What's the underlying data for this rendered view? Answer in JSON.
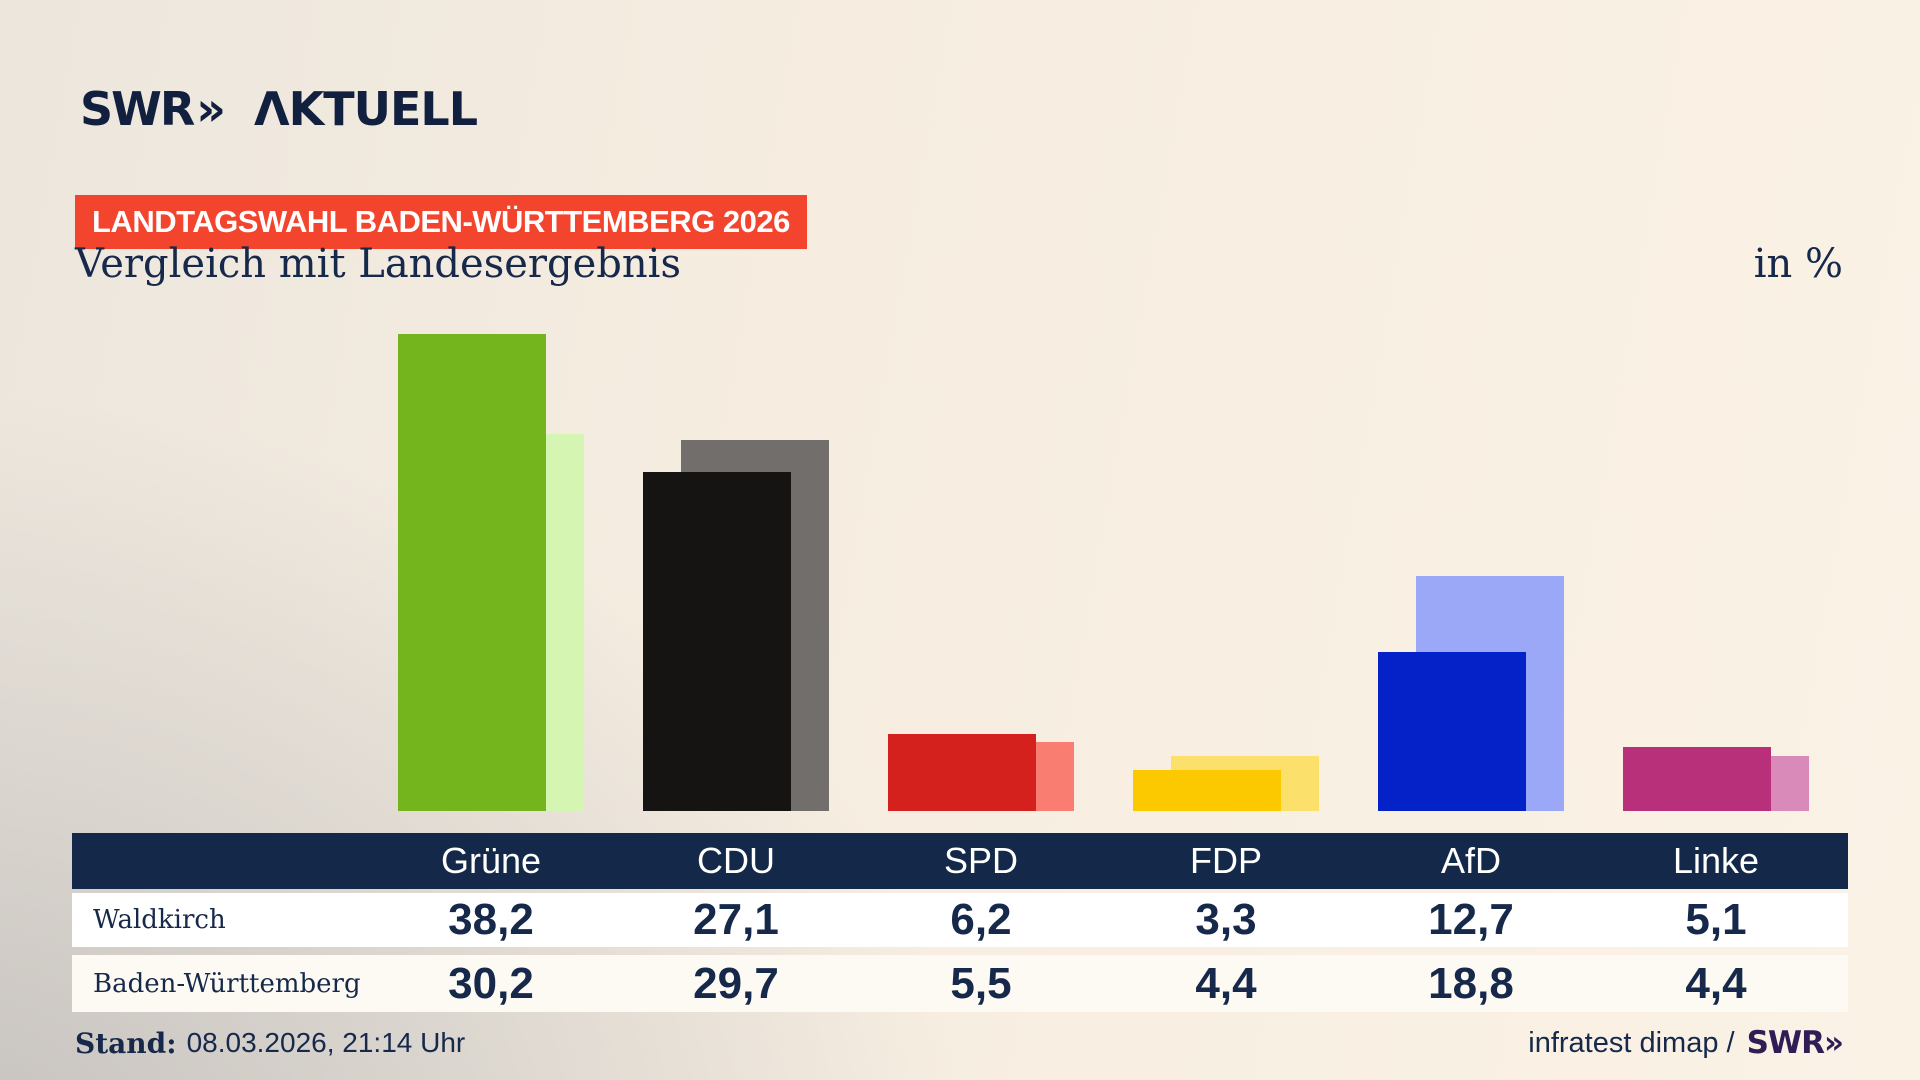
{
  "logo": {
    "swr": "SWR",
    "chevrons": "»",
    "brand": "ΛKTUELL"
  },
  "badge": "LANDTAGSWAHL BADEN-WÜRTTEMBERG 2026",
  "title": "Vergleich mit Landesergebnis",
  "unit_label": "in %",
  "chart_data": {
    "type": "bar",
    "title": "Vergleich mit Landesergebnis",
    "unit": "%",
    "categories": [
      "Grüne",
      "CDU",
      "SPD",
      "FDP",
      "AfD",
      "Linke"
    ],
    "series": [
      {
        "name": "Waldkirch",
        "role": "foreground",
        "values": [
          38.2,
          27.1,
          6.2,
          3.3,
          12.7,
          5.1
        ]
      },
      {
        "name": "Baden-Württemberg",
        "role": "background",
        "values": [
          30.2,
          29.7,
          5.5,
          4.4,
          18.8,
          4.4
        ]
      }
    ],
    "party_colors": [
      {
        "party": "Grüne",
        "main": "#74b51e",
        "light": "#d5f5b2"
      },
      {
        "party": "CDU",
        "main": "#151413",
        "light": "#716e6b"
      },
      {
        "party": "SPD",
        "main": "#d4211d",
        "light": "#fa7d71"
      },
      {
        "party": "FDP",
        "main": "#fcc800",
        "light": "#fbe06c"
      },
      {
        "party": "AfD",
        "main": "#0521c8",
        "light": "#9ba7f7"
      },
      {
        "party": "Linke",
        "main": "#b8307a",
        "light": "#d98ab9"
      }
    ],
    "ylim": [
      0,
      40
    ],
    "value_axis_hidden": true,
    "grid": false,
    "legend": "table below chart"
  },
  "table": {
    "columns": [
      "Grüne",
      "CDU",
      "SPD",
      "FDP",
      "AfD",
      "Linke"
    ],
    "rows": [
      {
        "label": "Waldkirch",
        "values": [
          "38,2",
          "27,1",
          "6,2",
          "3,3",
          "12,7",
          "5,1"
        ]
      },
      {
        "label": "Baden-Württemberg",
        "values": [
          "30,2",
          "29,7",
          "5,5",
          "4,4",
          "18,8",
          "4,4"
        ]
      }
    ]
  },
  "footer": {
    "stand_label": "Stand:",
    "stand_value": "08.03.2026, 21:14 Uhr",
    "source_text": "infratest dimap /",
    "source_logo": "SWR»"
  },
  "colors": {
    "accent_red": "#f3452e",
    "navy": "#16294b",
    "table_header": "#14294a",
    "background_cream": "#fbf2e6",
    "background_gray": "#c4c0bc"
  }
}
